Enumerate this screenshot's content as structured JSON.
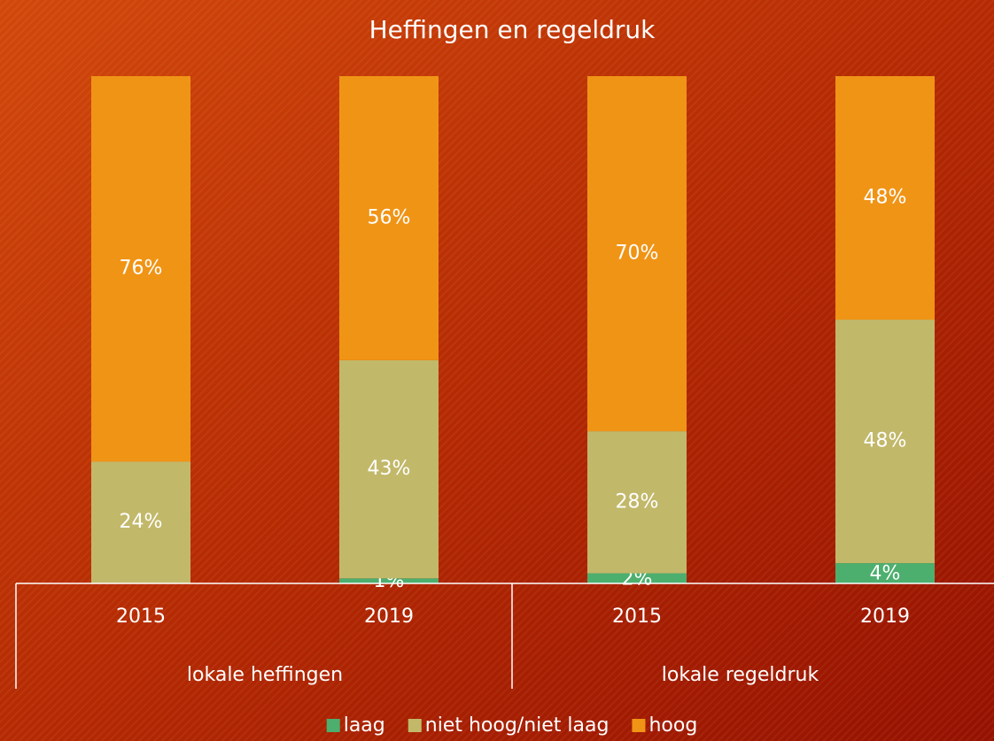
{
  "chart_data": {
    "type": "stacked_bar",
    "title": "Heffingen en regeldruk",
    "categories": [
      "2015",
      "2019",
      "2015",
      "2019"
    ],
    "groups": [
      "lokale heffingen",
      "lokale regeldruk"
    ],
    "series": [
      {
        "name": "laag",
        "color": "#4caf6e",
        "values": [
          0,
          1,
          2,
          4
        ],
        "value_labels": [
          null,
          "1%",
          "2%",
          "4%"
        ]
      },
      {
        "name": "niet hoog/niet laag",
        "color": "#c2b86a",
        "values": [
          24,
          43,
          28,
          48
        ],
        "value_labels": [
          "24%",
          "43%",
          "28%",
          "48%"
        ]
      },
      {
        "name": "hoog",
        "color": "#f09416",
        "values": [
          76,
          56,
          70,
          48
        ],
        "value_labels": [
          "76%",
          "56%",
          "70%",
          "48%"
        ]
      }
    ],
    "ylim": [
      0,
      100
    ],
    "legend": "bottom"
  }
}
